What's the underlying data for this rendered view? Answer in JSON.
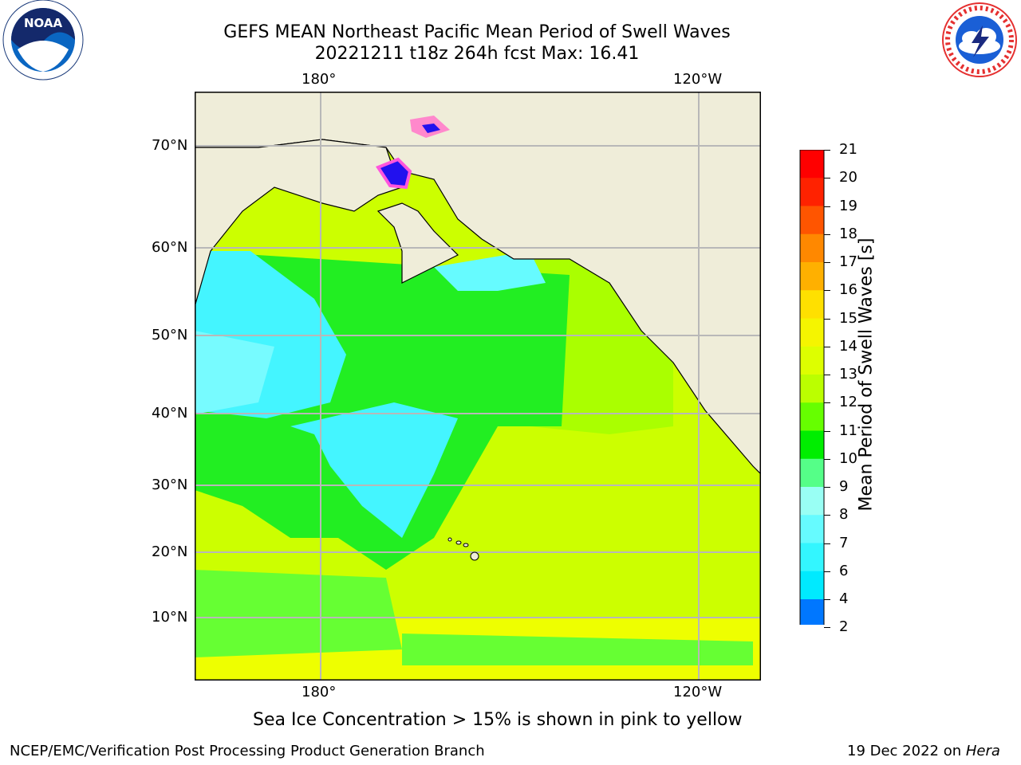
{
  "header": {
    "title_line1": "GEFS MEAN Northeast Pacific Mean Period of Swell Waves",
    "title_line2": "20221211 t18z 264h fcst   Max: 16.41"
  },
  "logos": {
    "left": {
      "name": "NOARA-logo",
      "text": "NOAA",
      "ring_text": "NATIONAL OCEANIC AND ATMOSPHERIC ADMINISTRATION · U.S. DEPARTMENT OF COMMERCE"
    },
    "right": {
      "name": "nws-logo",
      "ring_text": "NATIONAL WEATHER SERVICE"
    }
  },
  "map": {
    "lon_labels_top": [
      "180°",
      "120°W"
    ],
    "lon_labels_bottom": [
      "180°",
      "120°W"
    ],
    "lat_labels": [
      "70°N",
      "60°N",
      "50°N",
      "40°N",
      "30°N",
      "20°N",
      "10°N"
    ]
  },
  "colorbar": {
    "label": "Mean Period of Swell Waves [s]",
    "ticks": [
      "2",
      "4",
      "6",
      "7",
      "8",
      "9",
      "10",
      "11",
      "12",
      "13",
      "14",
      "15",
      "16",
      "17",
      "18",
      "19",
      "20",
      "21"
    ],
    "colors": [
      "#0000ff",
      "#0077ff",
      "#00eaff",
      "#33f6ff",
      "#66fbff",
      "#99fff4",
      "#55ff88",
      "#00ee00",
      "#66ff00",
      "#bbff00",
      "#ddff00",
      "#f5f500",
      "#ffe000",
      "#ffb000",
      "#ff8800",
      "#ff5500",
      "#ff2200",
      "#ff0000"
    ],
    "extend_color": "#0000ff"
  },
  "caption": "Sea Ice Concentration > 15% is shown in pink to yellow",
  "footer": {
    "left": "NCEP/EMC/Verification Post Processing Product Generation Branch",
    "right_date": "19 Dec 2022 on ",
    "right_host": "Hera"
  }
}
